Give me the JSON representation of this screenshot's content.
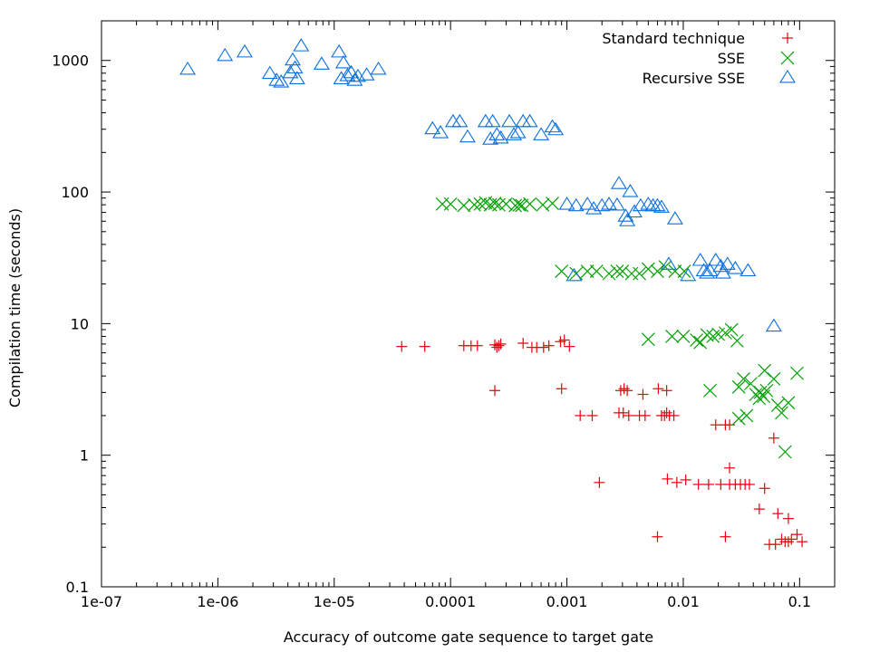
{
  "chart_data": {
    "type": "scatter",
    "title": "",
    "xlabel": "Accuracy of outcome gate sequence to target gate",
    "ylabel": "Compilation time (seconds)",
    "xscale": "log",
    "yscale": "log",
    "xlim": [
      1e-07,
      0.2
    ],
    "ylim": [
      0.1,
      2000
    ],
    "grid": false,
    "legend_position": "top-right",
    "x_ticks": [
      {
        "value": 1e-07,
        "label": "1e-07"
      },
      {
        "value": 1e-06,
        "label": "1e-06"
      },
      {
        "value": 1e-05,
        "label": "1e-05"
      },
      {
        "value": 0.0001,
        "label": "0.0001"
      },
      {
        "value": 0.001,
        "label": "0.001"
      },
      {
        "value": 0.01,
        "label": "0.01"
      },
      {
        "value": 0.1,
        "label": "0.1"
      }
    ],
    "y_ticks": [
      {
        "value": 0.1,
        "label": "0.1"
      },
      {
        "value": 1,
        "label": "1"
      },
      {
        "value": 10,
        "label": "10"
      },
      {
        "value": 100,
        "label": "100"
      },
      {
        "value": 1000,
        "label": "1000"
      }
    ],
    "series": [
      {
        "name": "Standard technique",
        "marker": "plus",
        "color": "#e8000b",
        "points": [
          [
            3.8e-05,
            6.7
          ],
          [
            6e-05,
            6.7
          ],
          [
            0.00013,
            6.8
          ],
          [
            0.00015,
            6.8
          ],
          [
            0.00017,
            6.8
          ],
          [
            0.00024,
            6.9
          ],
          [
            0.00026,
            6.8
          ],
          [
            0.00027,
            7.0
          ],
          [
            0.00025,
            6.6
          ],
          [
            0.00042,
            7.1
          ],
          [
            0.0005,
            6.6
          ],
          [
            0.00055,
            6.6
          ],
          [
            0.00063,
            6.6
          ],
          [
            0.0007,
            6.8
          ],
          [
            0.00088,
            7.3
          ],
          [
            0.00095,
            7.5
          ],
          [
            0.00105,
            6.7
          ],
          [
            0.00024,
            3.1
          ],
          [
            0.0009,
            3.2
          ],
          [
            0.0029,
            3.1
          ],
          [
            0.0031,
            3.2
          ],
          [
            0.0033,
            3.1
          ],
          [
            0.0045,
            2.9
          ],
          [
            0.0061,
            3.2
          ],
          [
            0.0072,
            3.1
          ],
          [
            0.0013,
            2.0
          ],
          [
            0.00165,
            2.0
          ],
          [
            0.0028,
            2.1
          ],
          [
            0.00305,
            2.1
          ],
          [
            0.0034,
            2.0
          ],
          [
            0.0042,
            2.0
          ],
          [
            0.0047,
            2.0
          ],
          [
            0.0065,
            2.0
          ],
          [
            0.0069,
            2.0
          ],
          [
            0.0072,
            2.1
          ],
          [
            0.0076,
            2.0
          ],
          [
            0.0083,
            2.0
          ],
          [
            0.019,
            1.7
          ],
          [
            0.023,
            1.7
          ],
          [
            0.025,
            1.7
          ],
          [
            0.06,
            1.35
          ],
          [
            0.0019,
            0.62
          ],
          [
            0.0073,
            0.66
          ],
          [
            0.0088,
            0.62
          ],
          [
            0.0105,
            0.65
          ],
          [
            0.0135,
            0.6
          ],
          [
            0.0165,
            0.6
          ],
          [
            0.021,
            0.6
          ],
          [
            0.025,
            0.6
          ],
          [
            0.028,
            0.6
          ],
          [
            0.031,
            0.6
          ],
          [
            0.034,
            0.6
          ],
          [
            0.037,
            0.6
          ],
          [
            0.05,
            0.56
          ],
          [
            0.025,
            0.8
          ],
          [
            0.045,
            0.39
          ],
          [
            0.065,
            0.36
          ],
          [
            0.08,
            0.33
          ],
          [
            0.006,
            0.24
          ],
          [
            0.023,
            0.24
          ],
          [
            0.055,
            0.21
          ],
          [
            0.062,
            0.21
          ],
          [
            0.07,
            0.23
          ],
          [
            0.075,
            0.22
          ],
          [
            0.08,
            0.22
          ],
          [
            0.085,
            0.23
          ],
          [
            0.095,
            0.25
          ],
          [
            0.105,
            0.22
          ]
        ]
      },
      {
        "name": "SSE",
        "marker": "cross",
        "color": "#00a000",
        "points": [
          [
            8.5e-05,
            81
          ],
          [
            0.0001,
            81
          ],
          [
            0.00013,
            79
          ],
          [
            0.00016,
            80
          ],
          [
            0.00018,
            81
          ],
          [
            0.0002,
            83
          ],
          [
            0.00022,
            80
          ],
          [
            0.00024,
            82
          ],
          [
            0.00026,
            80
          ],
          [
            0.0003,
            81
          ],
          [
            0.00036,
            79
          ],
          [
            0.00039,
            80
          ],
          [
            0.00041,
            79
          ],
          [
            0.00048,
            81
          ],
          [
            0.00062,
            80
          ],
          [
            0.00075,
            82
          ],
          [
            0.0009,
            25
          ],
          [
            0.0012,
            24
          ],
          [
            0.0015,
            25
          ],
          [
            0.0018,
            25
          ],
          [
            0.0023,
            24
          ],
          [
            0.0027,
            25
          ],
          [
            0.003,
            25
          ],
          [
            0.0036,
            24
          ],
          [
            0.0042,
            24
          ],
          [
            0.005,
            26
          ],
          [
            0.006,
            25
          ],
          [
            0.007,
            27
          ],
          [
            0.0085,
            25
          ],
          [
            0.0102,
            25
          ],
          [
            0.005,
            7.6
          ],
          [
            0.008,
            8.0
          ],
          [
            0.01,
            8.0
          ],
          [
            0.013,
            7.5
          ],
          [
            0.014,
            7.2
          ],
          [
            0.016,
            8.2
          ],
          [
            0.018,
            8.0
          ],
          [
            0.02,
            8.3
          ],
          [
            0.023,
            8.5
          ],
          [
            0.026,
            9.0
          ],
          [
            0.029,
            7.4
          ],
          [
            0.017,
            3.1
          ],
          [
            0.03,
            3.3
          ],
          [
            0.033,
            3.8
          ],
          [
            0.038,
            3.5
          ],
          [
            0.042,
            2.9
          ],
          [
            0.046,
            3.0
          ],
          [
            0.049,
            2.8
          ],
          [
            0.052,
            3.1
          ],
          [
            0.05,
            4.4
          ],
          [
            0.045,
            2.7
          ],
          [
            0.06,
            3.8
          ],
          [
            0.065,
            2.4
          ],
          [
            0.07,
            2.1
          ],
          [
            0.08,
            2.5
          ],
          [
            0.095,
            4.2
          ],
          [
            0.035,
            2.0
          ],
          [
            0.03,
            1.9
          ],
          [
            0.075,
            1.06
          ]
        ]
      },
      {
        "name": "Recursive SSE",
        "marker": "triangle",
        "color": "#0a6fe0",
        "points": [
          [
            5.5e-07,
            850
          ],
          [
            1.15e-06,
            1080
          ],
          [
            1.7e-06,
            1150
          ],
          [
            2.8e-06,
            790
          ],
          [
            3.2e-06,
            700
          ],
          [
            3.5e-06,
            680
          ],
          [
            4.2e-06,
            800
          ],
          [
            4.4e-06,
            1000
          ],
          [
            4.6e-06,
            870
          ],
          [
            4.8e-06,
            720
          ],
          [
            5.2e-06,
            1280
          ],
          [
            7.8e-06,
            930
          ],
          [
            1.1e-05,
            1150
          ],
          [
            1.15e-05,
            720
          ],
          [
            1.2e-05,
            950
          ],
          [
            1.3e-05,
            760
          ],
          [
            1.4e-05,
            800
          ],
          [
            1.5e-05,
            700
          ],
          [
            1.6e-05,
            750
          ],
          [
            1.9e-05,
            770
          ],
          [
            2.4e-05,
            850
          ],
          [
            7e-05,
            300
          ],
          [
            8.2e-05,
            280
          ],
          [
            0.000105,
            340
          ],
          [
            0.00012,
            340
          ],
          [
            0.00014,
            260
          ],
          [
            0.0002,
            340
          ],
          [
            0.00022,
            250
          ],
          [
            0.00023,
            340
          ],
          [
            0.00025,
            270
          ],
          [
            0.00027,
            255
          ],
          [
            0.00032,
            340
          ],
          [
            0.00035,
            270
          ],
          [
            0.00038,
            280
          ],
          [
            0.00042,
            340
          ],
          [
            0.00048,
            340
          ],
          [
            0.0006,
            270
          ],
          [
            0.00075,
            310
          ],
          [
            0.0008,
            295
          ],
          [
            0.001,
            80
          ],
          [
            0.0012,
            78
          ],
          [
            0.0015,
            80
          ],
          [
            0.0017,
            74
          ],
          [
            0.002,
            78
          ],
          [
            0.0023,
            80
          ],
          [
            0.0027,
            79
          ],
          [
            0.0028,
            115
          ],
          [
            0.0032,
            65
          ],
          [
            0.0033,
            60
          ],
          [
            0.0035,
            100
          ],
          [
            0.0038,
            70
          ],
          [
            0.0043,
            78
          ],
          [
            0.005,
            80
          ],
          [
            0.0055,
            78
          ],
          [
            0.006,
            78
          ],
          [
            0.0065,
            76
          ],
          [
            0.0085,
            62
          ],
          [
            0.00115,
            23
          ],
          [
            0.0075,
            28
          ],
          [
            0.011,
            23
          ],
          [
            0.014,
            30
          ],
          [
            0.015,
            25
          ],
          [
            0.016,
            24
          ],
          [
            0.017,
            25
          ],
          [
            0.019,
            30
          ],
          [
            0.021,
            27
          ],
          [
            0.022,
            24
          ],
          [
            0.024,
            28
          ],
          [
            0.028,
            26
          ],
          [
            0.036,
            25
          ],
          [
            0.06,
            9.5
          ]
        ]
      }
    ]
  }
}
